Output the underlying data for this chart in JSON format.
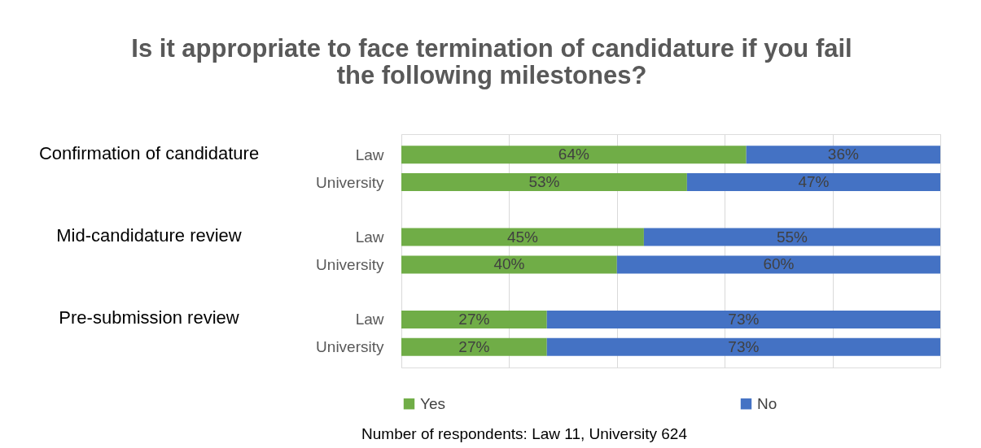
{
  "chart_data": {
    "type": "bar",
    "orientation": "horizontal",
    "stacked": true,
    "title": "Is it appropriate to face termination of candidature if you fail the following milestones?",
    "categories": [
      "Law",
      "University",
      "Law",
      "University",
      "Law",
      "University"
    ],
    "series": [
      {
        "name": "Yes",
        "color": "#70ad47",
        "values": [
          64,
          53,
          45,
          40,
          27,
          27
        ],
        "value_labels": [
          "64%",
          "53%",
          "45%",
          "40%",
          "27%",
          "27%"
        ]
      },
      {
        "name": "No",
        "color": "#4472c4",
        "values": [
          36,
          47,
          55,
          60,
          73,
          73
        ],
        "value_labels": [
          "36%",
          "47%",
          "55%",
          "60%",
          "73%",
          "73%"
        ]
      }
    ],
    "tick_labels": "y",
    "grid": "x",
    "legend": "bottom",
    "annotations": [
      "Confirmation of candidature",
      "Mid-candidature review",
      "Pre-submission review",
      "Number of respondents: Law 11, University 624"
    ]
  }
}
